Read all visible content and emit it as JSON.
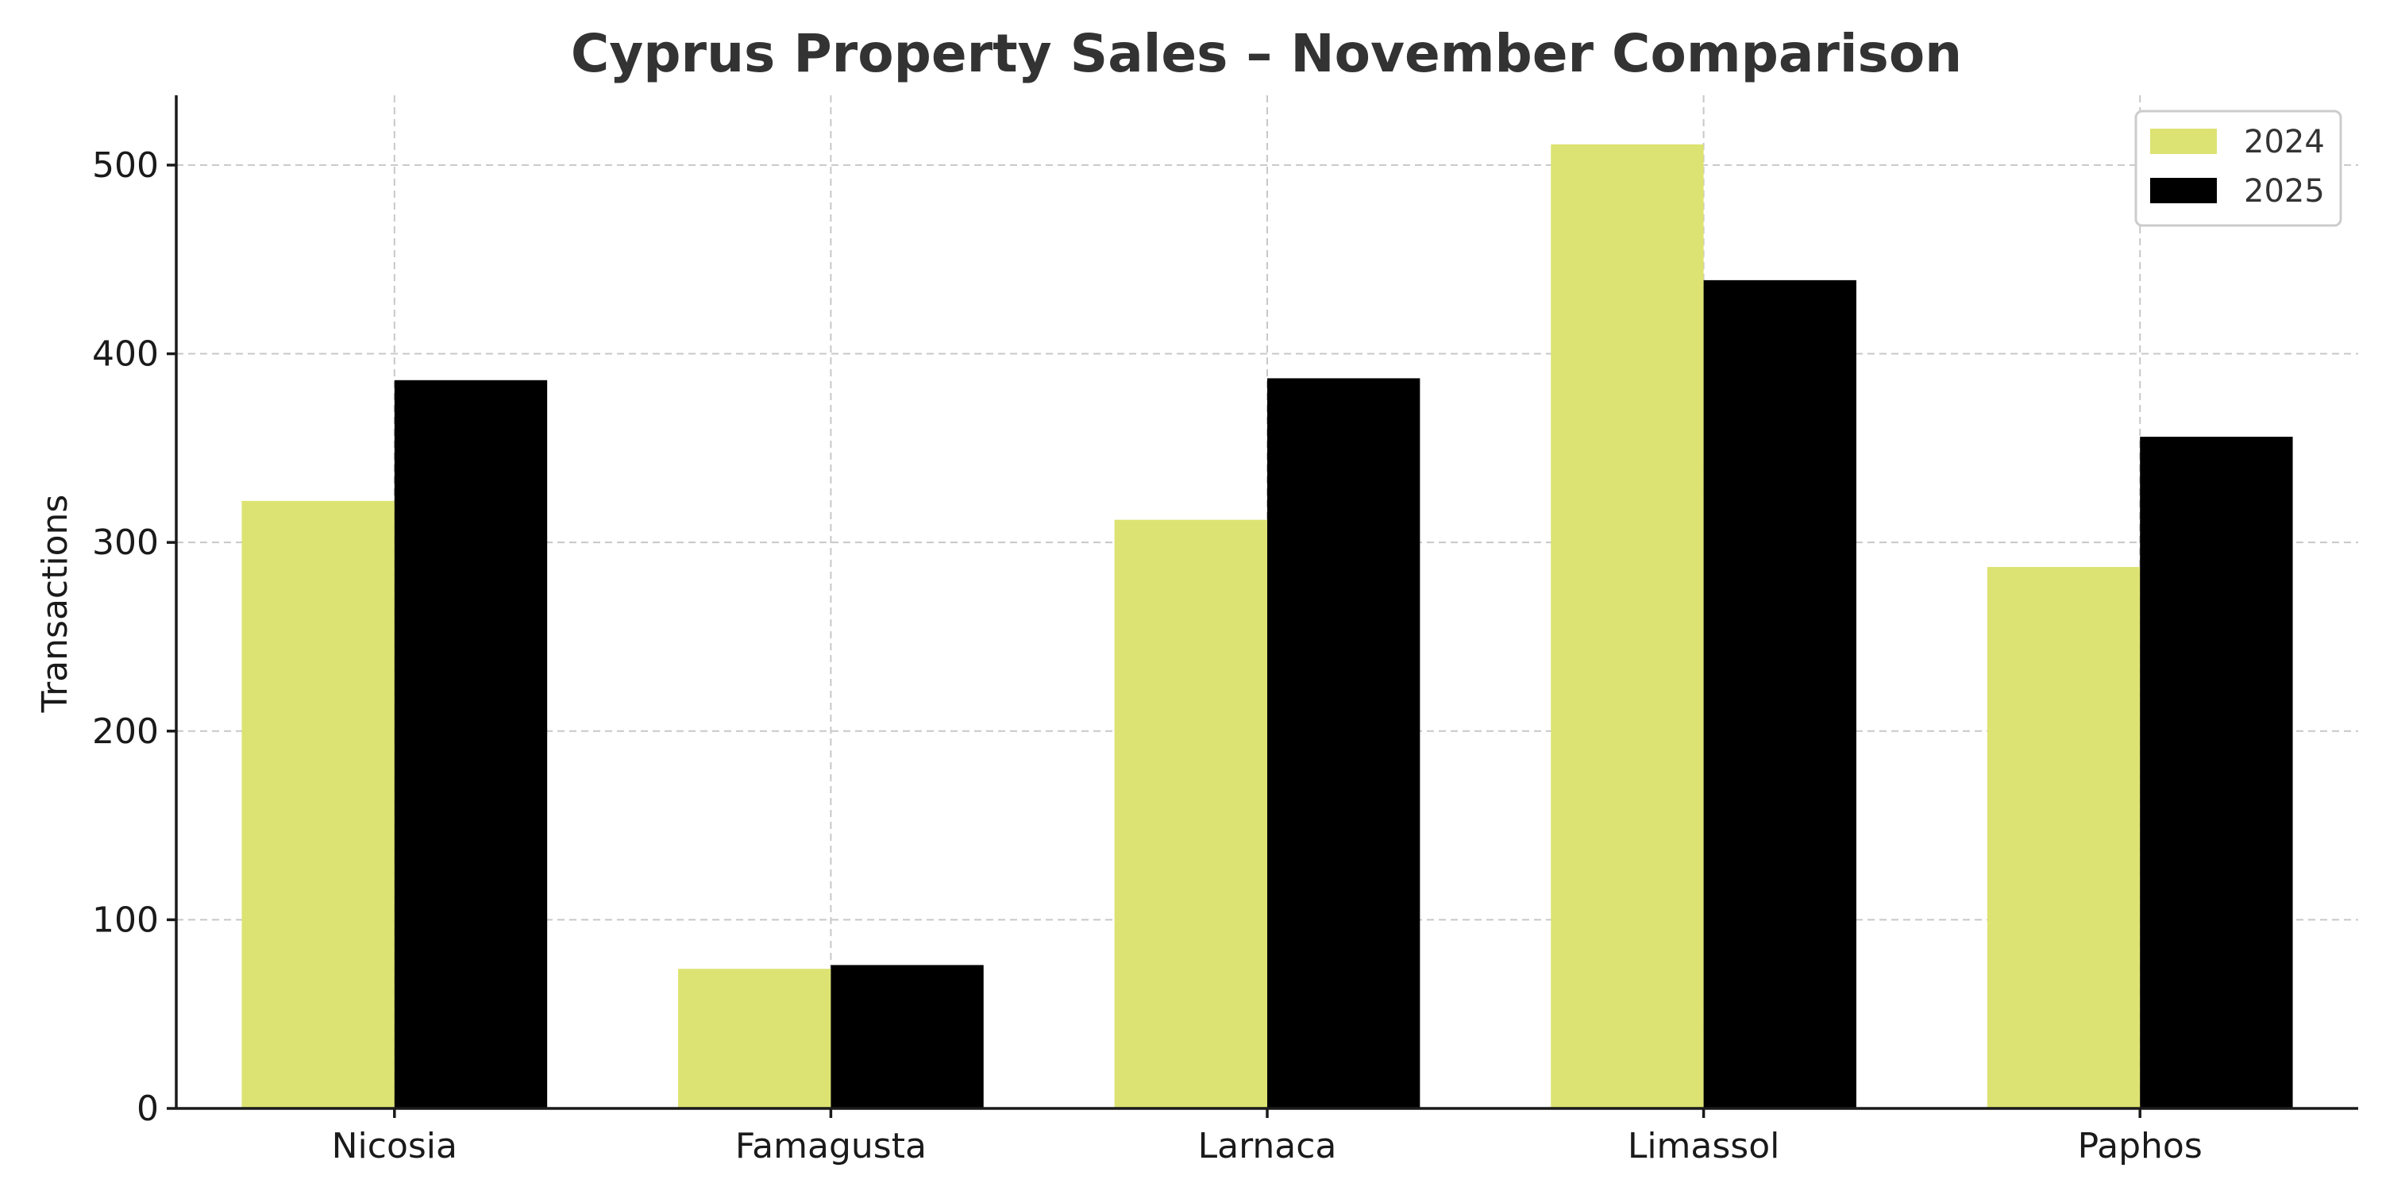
{
  "chart_data": {
    "type": "bar",
    "title": "Cyprus Property Sales – November Comparison",
    "xlabel": "",
    "ylabel": "Transactions",
    "categories": [
      "Nicosia",
      "Famagusta",
      "Larnaca",
      "Limassol",
      "Paphos"
    ],
    "series": [
      {
        "name": "2024",
        "values": [
          322,
          74,
          312,
          511,
          287
        ],
        "color": "#dde372"
      },
      {
        "name": "2025",
        "values": [
          386,
          76,
          387,
          439,
          356
        ],
        "color": "#000000"
      }
    ],
    "ylim": [
      0,
      537
    ],
    "yticks": [
      0,
      100,
      200,
      300,
      400,
      500
    ],
    "grid": true,
    "legend_position": "top-right"
  }
}
